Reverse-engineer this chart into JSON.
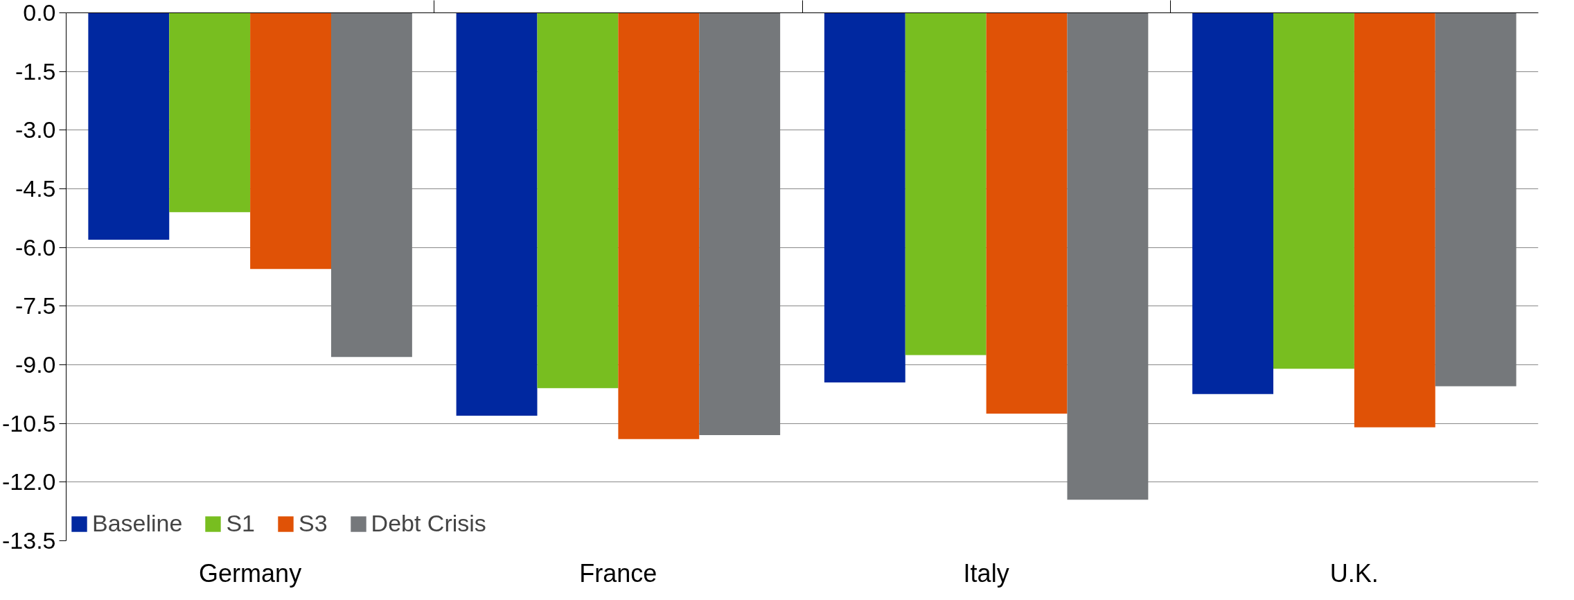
{
  "chart_data": {
    "type": "bar",
    "categories": [
      "Germany",
      "France",
      "Italy",
      "U.K."
    ],
    "series": [
      {
        "name": "Baseline",
        "color": "#0028a0",
        "values": [
          -5.8,
          -10.3,
          -9.45,
          -9.75
        ]
      },
      {
        "name": "S1",
        "color": "#78be20",
        "values": [
          -5.1,
          -9.6,
          -8.75,
          -9.1
        ]
      },
      {
        "name": "S3",
        "color": "#e05206",
        "values": [
          -6.55,
          -10.9,
          -10.25,
          -10.6
        ]
      },
      {
        "name": "Debt Crisis",
        "color": "#75787b",
        "values": [
          -8.8,
          -10.8,
          -12.45,
          -9.55
        ]
      }
    ],
    "ylim": [
      -13.5,
      0
    ],
    "yticks": [
      {
        "value": 0,
        "label": "0.0"
      },
      -1.5,
      {
        "value": -3,
        "label": "-3.0"
      },
      -4.5,
      {
        "value": -6,
        "label": "-6.0"
      },
      -7.5,
      {
        "value": -9,
        "label": "-9.0"
      },
      -10.5,
      {
        "value": -12,
        "label": "-12.0"
      },
      -13.5
    ],
    "grid": "y",
    "legend": "bottom left"
  }
}
